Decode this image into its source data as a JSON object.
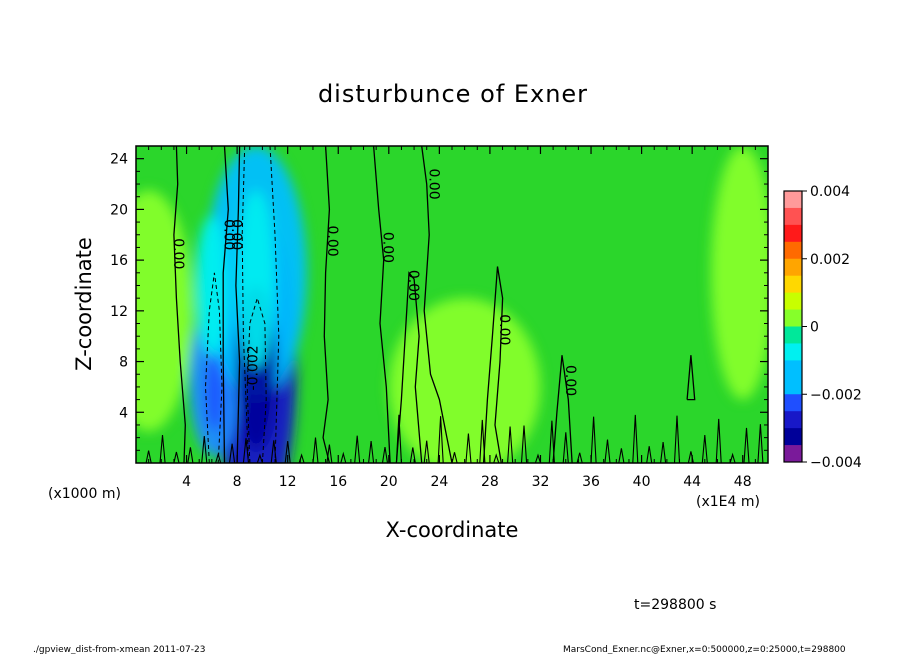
{
  "chart_data": {
    "type": "heatmap",
    "title": "disturbunce of Exner",
    "xlabel": "X-coordinate",
    "ylabel": "Z-coordinate",
    "x_unit_left": "(x1000 m)",
    "x_unit_right": "(x1E4 m)",
    "xlim": [
      0,
      50
    ],
    "ylim": [
      0,
      25
    ],
    "x_ticks": [
      "4",
      "8",
      "12",
      "16",
      "20",
      "24",
      "28",
      "32",
      "36",
      "40",
      "44",
      "48"
    ],
    "y_ticks": [
      "4",
      "8",
      "12",
      "16",
      "20",
      "24"
    ],
    "colorbar_ticks": [
      "0.004",
      "0.002",
      "0",
      "−0.002",
      "−0.004"
    ],
    "colorbar_range": [
      -0.004,
      0.004
    ],
    "contour_labels": [
      {
        "text": "0.00",
        "x": 3.0,
        "y": 16.5
      },
      {
        "text": "0.00",
        "x": 7.0,
        "y": 18.0
      },
      {
        "text": "0.00",
        "x": 7.6,
        "y": 18.0
      },
      {
        "text": "-0.002",
        "x": 9.6,
        "y": 7.5
      },
      {
        "text": "0.00",
        "x": 15.2,
        "y": 17.5
      },
      {
        "text": "0.00",
        "x": 19.6,
        "y": 17.0
      },
      {
        "text": "0.00",
        "x": 23.2,
        "y": 22.0
      },
      {
        "text": "0.00",
        "x": 21.6,
        "y": 14.0
      },
      {
        "text": "0.00",
        "x": 28.8,
        "y": 10.5
      },
      {
        "text": "0.00",
        "x": 34.0,
        "y": 6.5
      }
    ],
    "anomalies": [
      {
        "x": 9.5,
        "z": 7.5,
        "value": -0.0028
      },
      {
        "x": 6.2,
        "z": 6.5,
        "value": -0.0022
      },
      {
        "x": 9.5,
        "z": 15.0,
        "value": -0.0015
      },
      {
        "x": 6.0,
        "z": 14.0,
        "value": -0.001
      },
      {
        "x": 1.0,
        "z": 12.0,
        "value": 0.0004
      },
      {
        "x": 48.0,
        "z": 15.0,
        "value": 0.0005
      },
      {
        "x": 26.0,
        "z": 6.0,
        "value": 0.0003
      }
    ],
    "colors": {
      "plus_0.004": "#ff9a9a",
      "plus_0.0035": "#ff5252",
      "plus_0.003": "#ff1a1a",
      "plus_0.0025": "#ff6a00",
      "plus_0.002": "#ffa500",
      "plus_0.0015": "#ffd800",
      "plus_0.001": "#c8ff00",
      "plus_0.0005": "#86ff2a",
      "zero": "#2bd62b",
      "minus_0.0005": "#00e89a",
      "minus_0.001": "#00f0f0",
      "minus_0.0015": "#00bfff",
      "minus_0.002": "#1a8cff",
      "minus_0.0025": "#1f4fff",
      "minus_0.003": "#1818c8",
      "minus_0.0035": "#000099",
      "minus_0.004": "#7a1a9a"
    }
  },
  "annotations": {
    "time": "t=298800 s",
    "footer_left": "./gpview_dist-from-xmean   2011-07-23",
    "footer_right": "MarsCond_Exner.nc@Exner,x=0:500000,z=0:25000,t=298800"
  }
}
